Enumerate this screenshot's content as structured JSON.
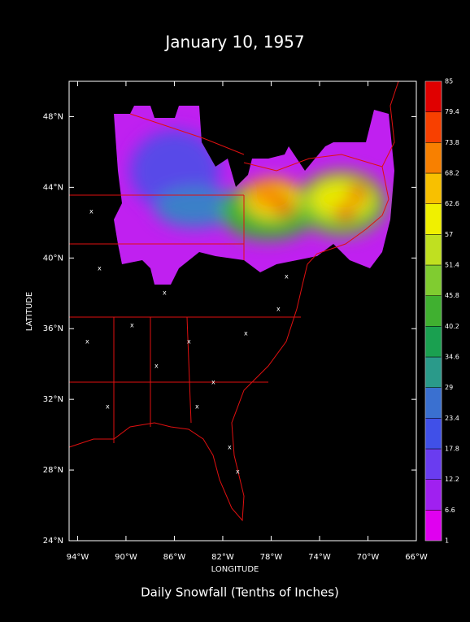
{
  "map": {
    "title": "January 10, 1957",
    "x_axis": {
      "label": "LONGITUDE",
      "lim": [
        -94.7,
        -66
      ],
      "ticks": [
        {
          "value": -94,
          "label": "94°W"
        },
        {
          "value": -90,
          "label": "90°W"
        },
        {
          "value": -86,
          "label": "86°W"
        },
        {
          "value": -82,
          "label": "82°W"
        },
        {
          "value": -78,
          "label": "78°W"
        },
        {
          "value": -74,
          "label": "74°W"
        },
        {
          "value": -70,
          "label": "70°W"
        },
        {
          "value": -66,
          "label": "66°W"
        }
      ]
    },
    "y_axis": {
      "label": "LATITUDE",
      "lim": [
        24,
        50
      ],
      "ticks": [
        {
          "value": 24,
          "label": "24°N"
        },
        {
          "value": 28,
          "label": "28°N"
        },
        {
          "value": 32,
          "label": "32°N"
        },
        {
          "value": 36,
          "label": "36°N"
        },
        {
          "value": 40,
          "label": "40°N"
        },
        {
          "value": 44,
          "label": "44°N"
        },
        {
          "value": 48,
          "label": "48°N"
        }
      ]
    },
    "colorbar": {
      "lim": [
        1,
        85
      ],
      "ticks": [
        1,
        6.6,
        12.2,
        17.8,
        23.4,
        29,
        34.6,
        40.2,
        45.8,
        51.4,
        57,
        62.6,
        68.2,
        73.8,
        79.4,
        85
      ],
      "colors": [
        "#e000f0",
        "#a020f0",
        "#6a3cf0",
        "#4050e8",
        "#3a70d0",
        "#2a9a8a",
        "#1aa050",
        "#40b030",
        "#80cc30",
        "#c0e020",
        "#f0f000",
        "#f8c000",
        "#f88000",
        "#f84000",
        "#e00000"
      ]
    },
    "caption": "Daily Snowfall (Tenths of Inches)"
  }
}
